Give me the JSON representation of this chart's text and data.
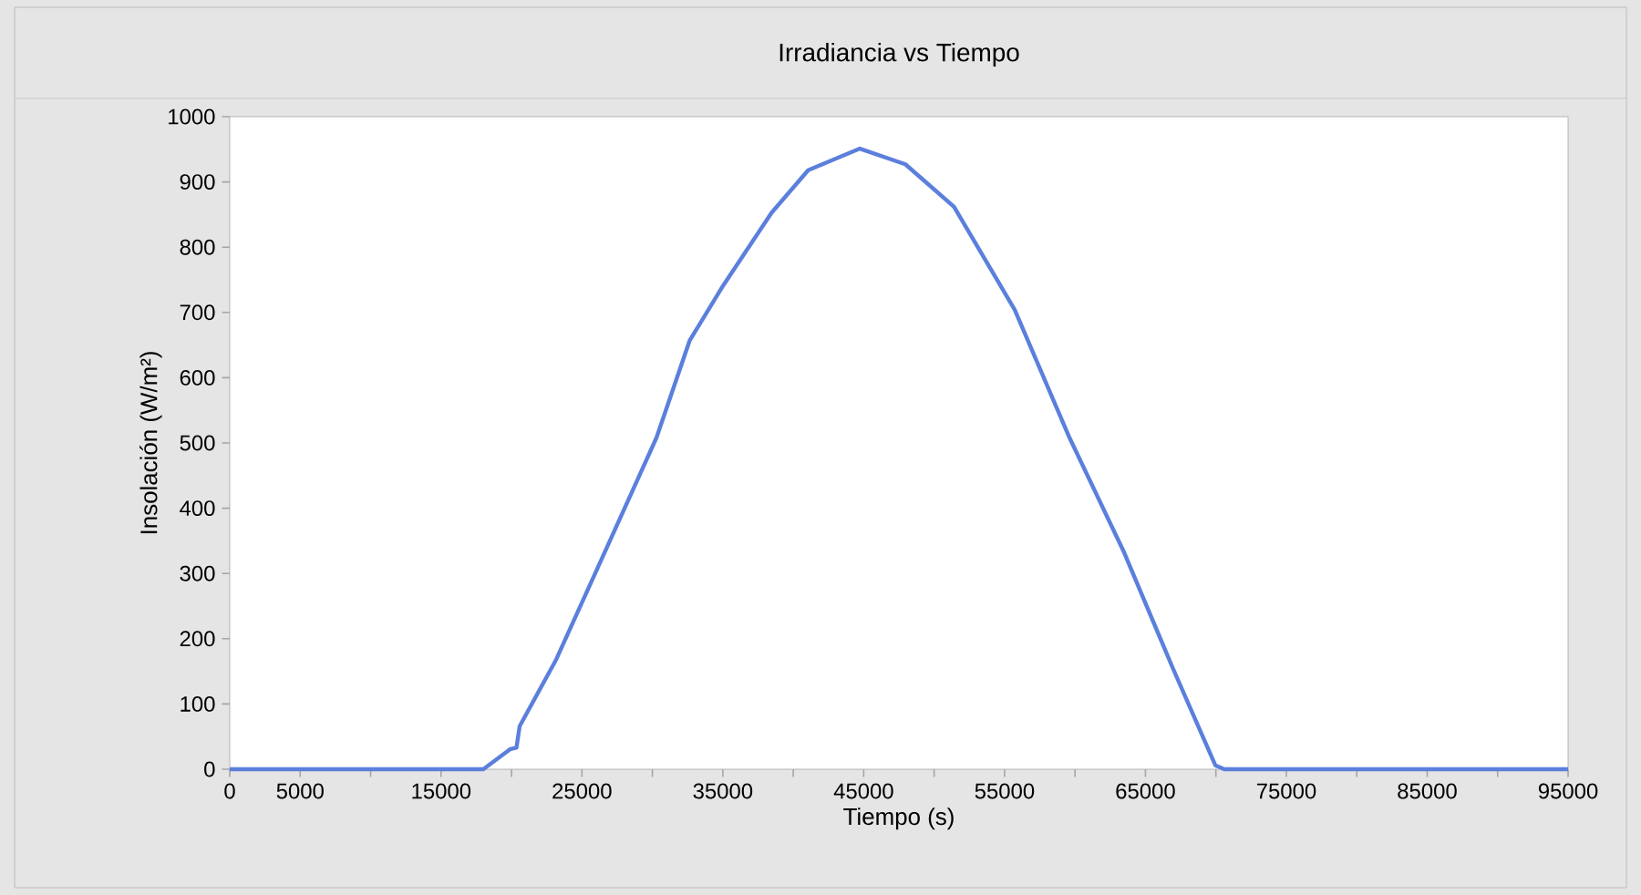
{
  "chart_data": {
    "type": "line",
    "title": "Irradiancia vs Tiempo",
    "xlabel": "Tiempo (s)",
    "ylabel": "Insolación (W/m²)",
    "x": [
      0,
      18000,
      19930,
      20350,
      20580,
      23170,
      26400,
      30290,
      32650,
      35020,
      38470,
      41060,
      44730,
      47960,
      51410,
      55720,
      59610,
      63490,
      66940,
      69960,
      70600,
      95000
    ],
    "series": [
      {
        "color": "#5b7fdc",
        "values": [
          0,
          0,
          31,
          33,
          66,
          168,
          322,
          508,
          657,
          741,
          853,
          918,
          951,
          927,
          862,
          704,
          508,
          332,
          155,
          6,
          0,
          0
        ]
      }
    ],
    "xlim": [
      0,
      95000
    ],
    "xticks": [
      0,
      5000,
      {
        "value": 10000,
        "label": null
      },
      15000,
      {
        "value": 20000,
        "label": null
      },
      25000,
      {
        "value": 30000,
        "label": null
      },
      35000,
      {
        "value": 40000,
        "label": null
      },
      45000,
      {
        "value": 50000,
        "label": null
      },
      55000,
      {
        "value": 60000,
        "label": null
      },
      65000,
      {
        "value": 70000,
        "label": null
      },
      75000,
      {
        "value": 80000,
        "label": null
      },
      85000,
      {
        "value": 90000,
        "label": null
      },
      95000
    ],
    "ylim": [
      0,
      1000
    ],
    "yticks": [
      0,
      100,
      200,
      300,
      400,
      500,
      600,
      700,
      800,
      900,
      1000
    ],
    "grid": false,
    "marker": "none",
    "line_style": "solid"
  }
}
